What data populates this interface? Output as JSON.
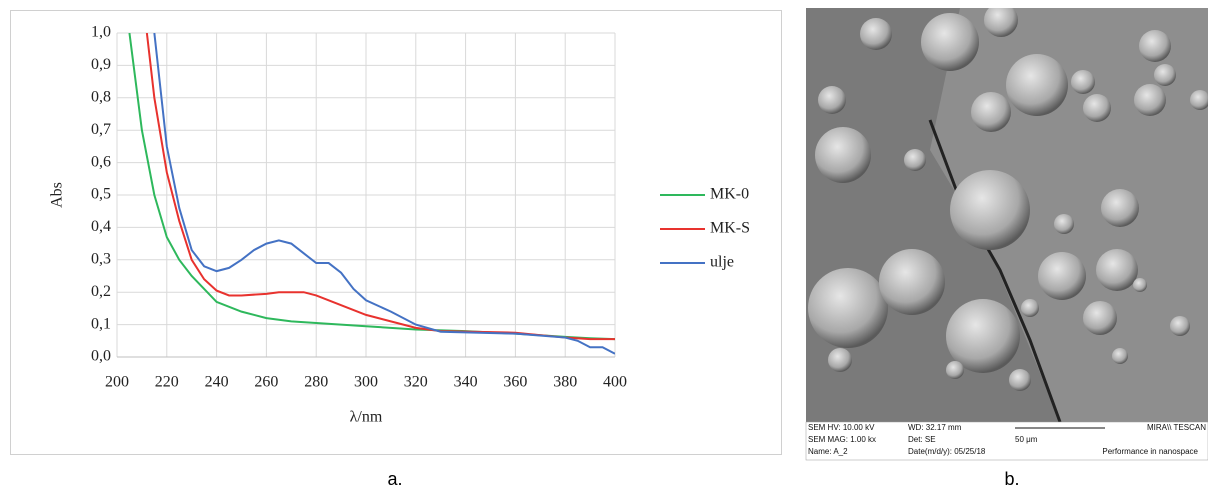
{
  "chart_data": {
    "type": "line",
    "xlabel": "λ/nm",
    "ylabel": "Abs",
    "xlim": [
      200,
      400
    ],
    "ylim": [
      0,
      1
    ],
    "xticks": [
      200,
      220,
      240,
      260,
      280,
      300,
      320,
      340,
      360,
      380,
      400
    ],
    "yticks": [
      {
        "value": 0,
        "label": "0,0"
      },
      {
        "value": 0.1,
        "label": "0,1"
      },
      {
        "value": 0.2,
        "label": "0,2"
      },
      {
        "value": 0.3,
        "label": "0,3"
      },
      {
        "value": 0.4,
        "label": "0,4"
      },
      {
        "value": 0.5,
        "label": "0,5"
      },
      {
        "value": 0.6,
        "label": "0,6"
      },
      {
        "value": 0.7,
        "label": "0,7"
      },
      {
        "value": 0.8,
        "label": "0,8"
      },
      {
        "value": 0.9,
        "label": "0,9"
      },
      {
        "value": 1,
        "label": "1,0"
      }
    ],
    "grid": true,
    "legend": "right",
    "series": [
      {
        "name": "MK-0",
        "color": "#2eb85c",
        "x": [
          205,
          210,
          215,
          220,
          225,
          230,
          235,
          240,
          250,
          260,
          270,
          280,
          300,
          320,
          340,
          360,
          380,
          390,
          400
        ],
        "values": [
          1.0,
          0.7,
          0.5,
          0.37,
          0.3,
          0.25,
          0.21,
          0.17,
          0.14,
          0.12,
          0.11,
          0.105,
          0.095,
          0.085,
          0.08,
          0.072,
          0.062,
          0.058,
          0.055
        ]
      },
      {
        "name": "MK-S",
        "color": "#e8322e",
        "x": [
          212,
          215,
          220,
          225,
          230,
          235,
          240,
          245,
          250,
          260,
          265,
          275,
          280,
          290,
          300,
          320,
          330,
          360,
          380,
          390,
          400
        ],
        "values": [
          1.0,
          0.8,
          0.57,
          0.42,
          0.3,
          0.24,
          0.205,
          0.19,
          0.19,
          0.195,
          0.2,
          0.2,
          0.19,
          0.16,
          0.13,
          0.09,
          0.08,
          0.075,
          0.06,
          0.055,
          0.055
        ]
      },
      {
        "name": "ulje",
        "color": "#4472c4",
        "x": [
          215,
          220,
          225,
          230,
          235,
          240,
          245,
          250,
          255,
          260,
          265,
          270,
          275,
          280,
          285,
          290,
          295,
          300,
          310,
          320,
          330,
          360,
          380,
          385,
          390,
          395,
          400
        ],
        "values": [
          1.0,
          0.65,
          0.46,
          0.33,
          0.28,
          0.265,
          0.275,
          0.3,
          0.33,
          0.35,
          0.36,
          0.35,
          0.32,
          0.29,
          0.29,
          0.26,
          0.21,
          0.175,
          0.14,
          0.1,
          0.078,
          0.072,
          0.06,
          0.05,
          0.03,
          0.03,
          0.01
        ]
      }
    ]
  },
  "sem_image": {
    "info": [
      "SEM HV: 10.00 kV",
      "SEM MAG: 1.00 kx",
      "Name: A_2",
      "WD: 32.17 mm",
      "Det: SE",
      "Date(m/d/y): 05/25/18",
      "50 μm",
      "MIRA\\\\ TESCAN",
      "Performance in nanospace"
    ]
  },
  "captions": [
    "a.",
    "b."
  ]
}
